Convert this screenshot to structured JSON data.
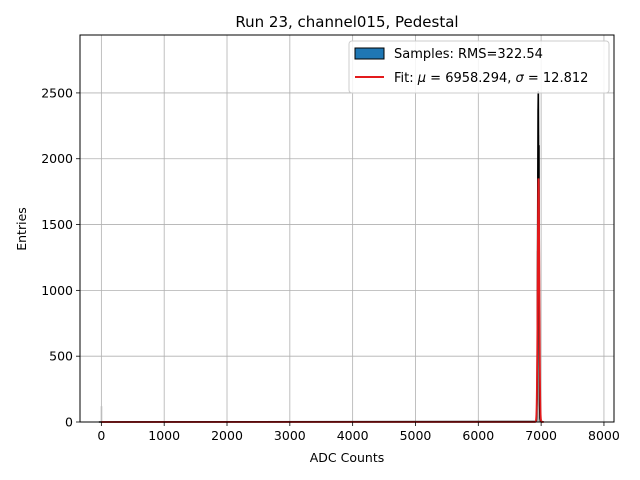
{
  "chart_data": {
    "type": "histogram",
    "title": "Run 23, channel015, Pedestal",
    "xlabel": "ADC Counts",
    "ylabel": "Entries",
    "xlim": [
      -340,
      8160
    ],
    "ylim": [
      0,
      2940
    ],
    "xticks": [
      0,
      1000,
      2000,
      3000,
      4000,
      5000,
      6000,
      7000,
      8000
    ],
    "yticks": [
      0,
      500,
      1000,
      1500,
      2000,
      2500
    ],
    "grid": true,
    "legend_position": "top-right",
    "histogram": {
      "legend": "Samples: RMS=322.54",
      "color": "#1f77b4",
      "edge_color": "#000000",
      "bins": [
        {
          "x": 6915,
          "count": 4
        },
        {
          "x": 6925,
          "count": 12
        },
        {
          "x": 6930,
          "count": 60
        },
        {
          "x": 6935,
          "count": 180
        },
        {
          "x": 6940,
          "count": 620
        },
        {
          "x": 6944,
          "count": 1300
        },
        {
          "x": 6948,
          "count": 1900
        },
        {
          "x": 6952,
          "count": 2380
        },
        {
          "x": 6955,
          "count": 2510
        },
        {
          "x": 6958,
          "count": 2180
        },
        {
          "x": 6962,
          "count": 1480
        },
        {
          "x": 6965,
          "count": 2100
        },
        {
          "x": 6968,
          "count": 1200
        },
        {
          "x": 6972,
          "count": 420
        },
        {
          "x": 6976,
          "count": 130
        },
        {
          "x": 6982,
          "count": 30
        },
        {
          "x": 6990,
          "count": 6
        }
      ],
      "outliers": [
        {
          "x": 2,
          "count": 120
        }
      ]
    },
    "fit": {
      "legend_prefix": "Fit: ",
      "mu_symbol": "μ",
      "mu_text": " = 6958.294, ",
      "sigma_symbol": "σ",
      "sigma_text": " = 12.812",
      "mu": 6958.294,
      "sigma": 12.812,
      "amplitude": 1850,
      "color": "#e31a1c"
    }
  }
}
